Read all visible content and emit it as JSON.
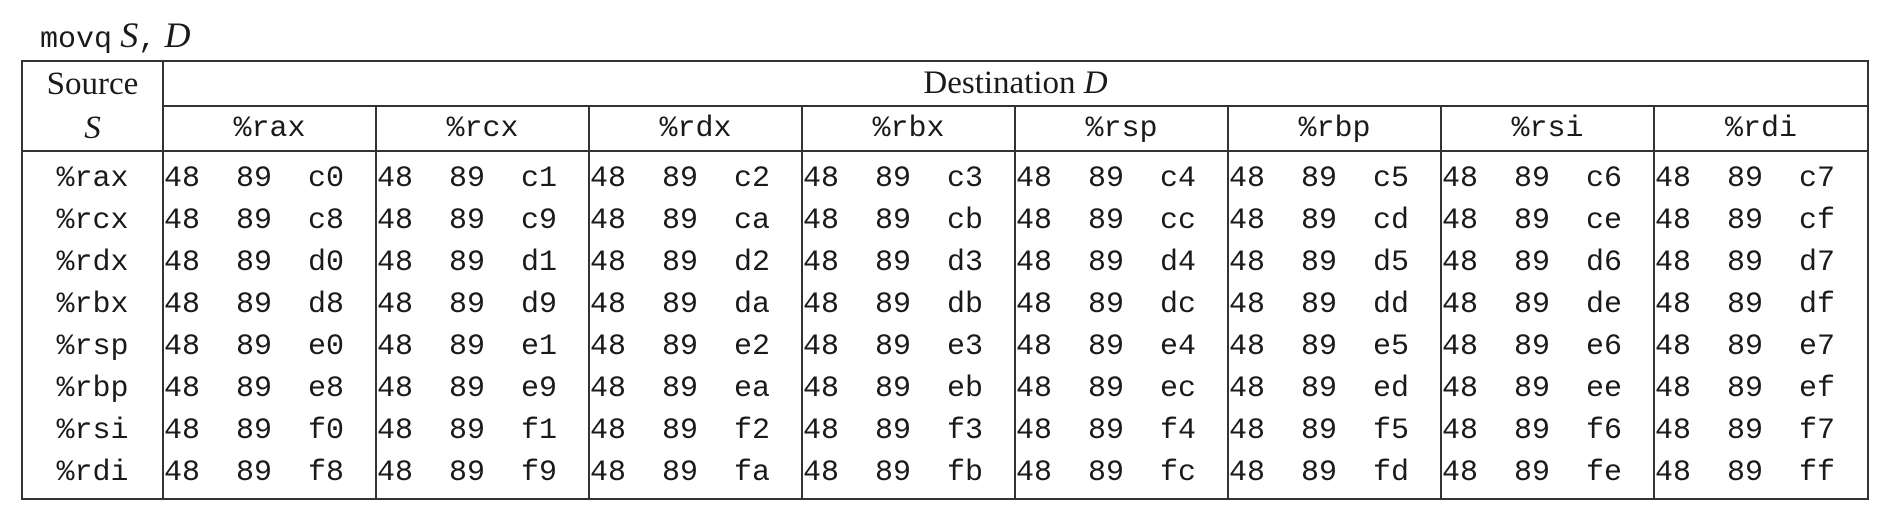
{
  "caption": {
    "mnemonic": "movq",
    "source_var": "S",
    "separator": ",",
    "dest_var": "D"
  },
  "header": {
    "source_label": "Source",
    "source_var": "S",
    "destination_label": "Destination",
    "destination_var": "D"
  },
  "destinations": [
    "%rax",
    "%rcx",
    "%rdx",
    "%rbx",
    "%rsp",
    "%rbp",
    "%rsi",
    "%rdi"
  ],
  "rows": [
    {
      "source": "%rax",
      "cells": [
        "48  89  c0",
        "48  89  c1",
        "48  89  c2",
        "48  89  c3",
        "48  89  c4",
        "48  89  c5",
        "48  89  c6",
        "48  89  c7"
      ]
    },
    {
      "source": "%rcx",
      "cells": [
        "48  89  c8",
        "48  89  c9",
        "48  89  ca",
        "48  89  cb",
        "48  89  cc",
        "48  89  cd",
        "48  89  ce",
        "48  89  cf"
      ]
    },
    {
      "source": "%rdx",
      "cells": [
        "48  89  d0",
        "48  89  d1",
        "48  89  d2",
        "48  89  d3",
        "48  89  d4",
        "48  89  d5",
        "48  89  d6",
        "48  89  d7"
      ]
    },
    {
      "source": "%rbx",
      "cells": [
        "48  89  d8",
        "48  89  d9",
        "48  89  da",
        "48  89  db",
        "48  89  dc",
        "48  89  dd",
        "48  89  de",
        "48  89  df"
      ]
    },
    {
      "source": "%rsp",
      "cells": [
        "48  89  e0",
        "48  89  e1",
        "48  89  e2",
        "48  89  e3",
        "48  89  e4",
        "48  89  e5",
        "48  89  e6",
        "48  89  e7"
      ]
    },
    {
      "source": "%rbp",
      "cells": [
        "48  89  e8",
        "48  89  e9",
        "48  89  ea",
        "48  89  eb",
        "48  89  ec",
        "48  89  ed",
        "48  89  ee",
        "48  89  ef"
      ]
    },
    {
      "source": "%rsi",
      "cells": [
        "48  89  f0",
        "48  89  f1",
        "48  89  f2",
        "48  89  f3",
        "48  89  f4",
        "48  89  f5",
        "48  89  f6",
        "48  89  f7"
      ]
    },
    {
      "source": "%rdi",
      "cells": [
        "48  89  f8",
        "48  89  f9",
        "48  89  fa",
        "48  89  fb",
        "48  89  fc",
        "48  89  fd",
        "48  89  fe",
        "48  89  ff"
      ]
    }
  ]
}
